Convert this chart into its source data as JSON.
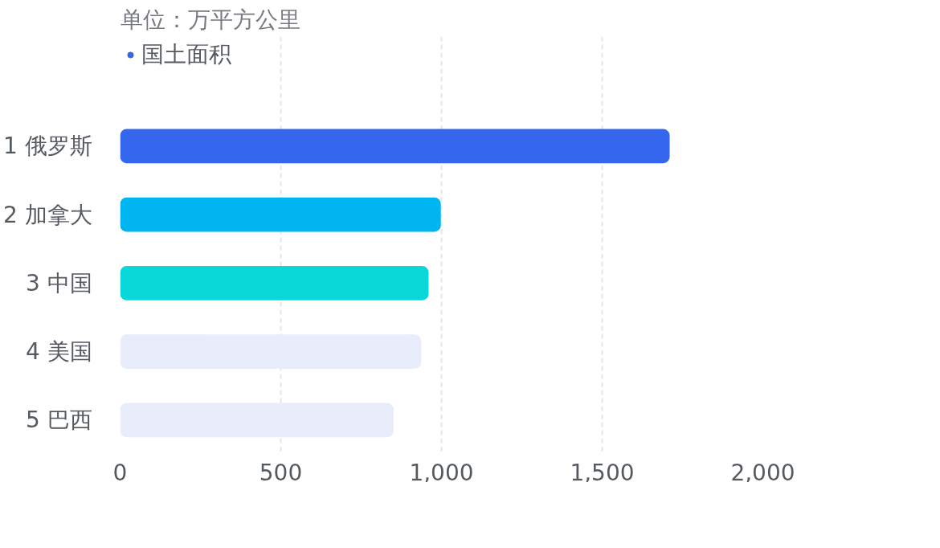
{
  "chart_data": {
    "type": "bar",
    "orientation": "horizontal",
    "title": "单位：万平方公里",
    "categories": [
      "1  俄罗斯",
      "2  加拿大",
      "3  中国",
      "4  美国",
      "5  巴西"
    ],
    "series": [
      {
        "name": "国土面积",
        "color": "#3566ee",
        "colors": [
          "#3566ee",
          "#00b4f0",
          "#0ad8d8",
          "#e8ecfb",
          "#e8ecfb"
        ],
        "values": [
          1710,
          998,
          960,
          937,
          851
        ]
      }
    ],
    "xlim": [
      0,
      2000
    ],
    "xticks": [
      0,
      500,
      {
        "value": 1000,
        "label": "1,000"
      },
      {
        "value": 1500,
        "label": "1,500"
      },
      {
        "value": 2000,
        "label": "2,000"
      }
    ],
    "grid": "x",
    "legend": "top left"
  }
}
